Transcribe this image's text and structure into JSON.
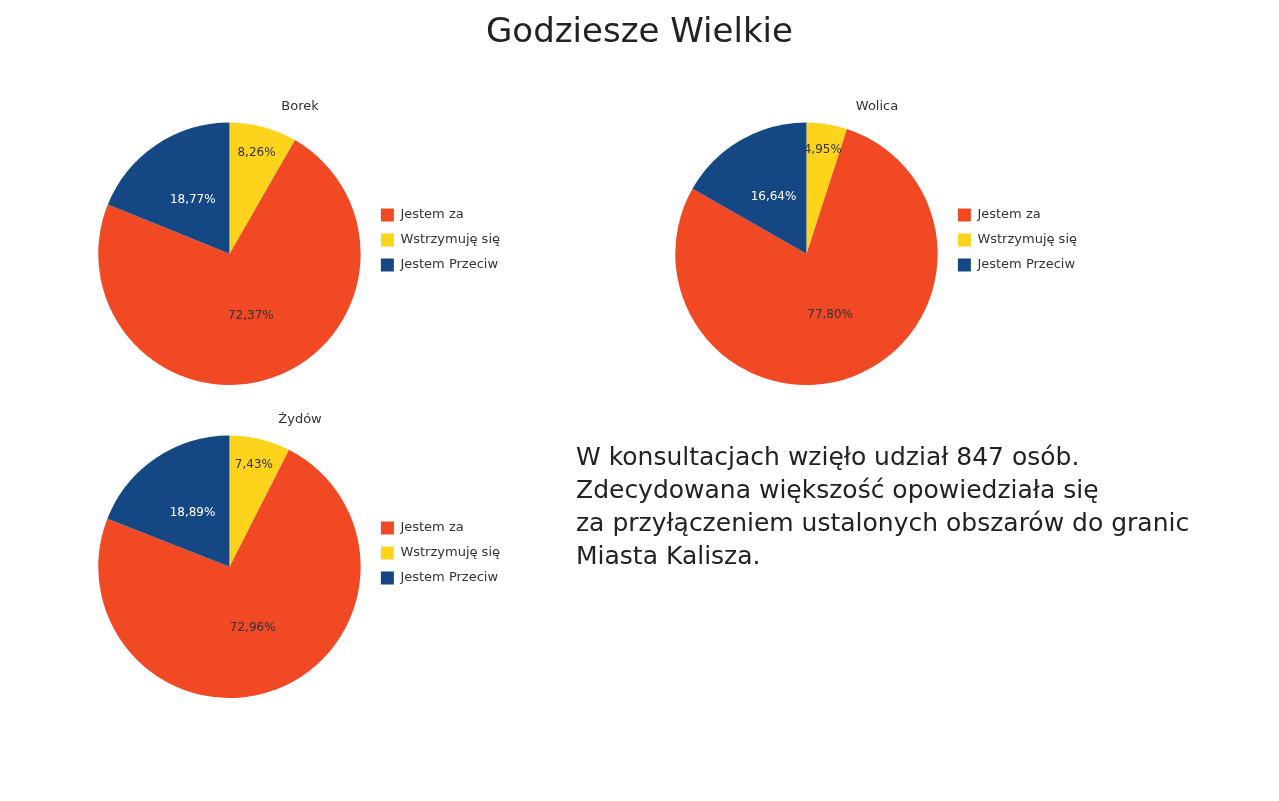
{
  "chart_data": [
    {
      "type": "other",
      "title": "Godziesze Wielkie"
    },
    {
      "type": "pie",
      "title": "Borek",
      "categories": [
        "Jestem za",
        "Wstrzymuję się",
        "Jestem Przeciw"
      ],
      "values": [
        72.37,
        8.26,
        18.77
      ],
      "colors": [
        "#f04923",
        "#fdd31c",
        "#154785"
      ],
      "value_labels": [
        "72,37%",
        "8,26%",
        "18,77%"
      ],
      "legend": "right"
    },
    {
      "type": "pie",
      "title": "Wolica",
      "categories": [
        "Jestem za",
        "Wstrzymuję się",
        "Jestem Przeciw"
      ],
      "values": [
        77.8,
        4.95,
        16.64
      ],
      "colors": [
        "#f04923",
        "#fdd31c",
        "#154785"
      ],
      "value_labels": [
        "77,80%",
        "4,95%",
        "16,64%"
      ],
      "legend": "right"
    },
    {
      "type": "pie",
      "title": "Żydów",
      "categories": [
        "Jestem za",
        "Wstrzymuję się",
        "Jestem Przeciw"
      ],
      "values": [
        72.96,
        7.43,
        18.89
      ],
      "colors": [
        "#f04923",
        "#fdd31c",
        "#154785"
      ],
      "value_labels": [
        "72,96%",
        "7,43%",
        "18,89%"
      ],
      "legend": "right"
    },
    {
      "type": "other",
      "annotations": [
        "W konsultacjach wzięło udział 847 osób.",
        "Zdecydowana większość opowiedziała się",
        "za przyłączeniem ustalonych obszarów do granic",
        "Miasta Kalisza."
      ]
    }
  ]
}
